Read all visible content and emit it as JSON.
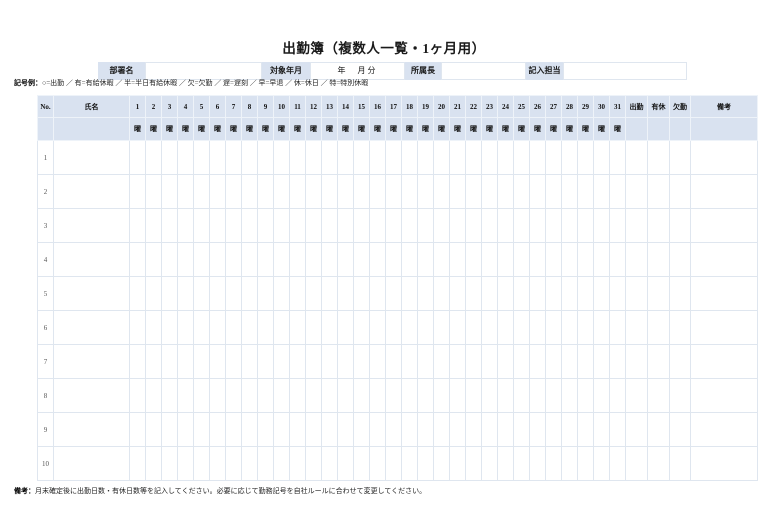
{
  "title": "出勤簿（複数人一覧・1ヶ月用）",
  "colors": {
    "header_bg": "#d9e2f0",
    "grid_line": "#dfe6ef",
    "text": "#1a1a1a"
  },
  "header": {
    "dept_label": "部署名",
    "dept_value": "",
    "target_label": "対象年月",
    "target_value": "年　月分",
    "manager_label": "所属長",
    "manager_value": "",
    "recorder_label": "記入担当",
    "recorder_value": ""
  },
  "legend": {
    "prefix": "記号例：",
    "text": "○=出勤 ／ 有=有給休暇 ／ 半=半日有給休暇 ／ 欠=欠勤 ／ 遅=遅刻 ／ 早=早退 ／ 休=休日 ／ 特=特別休暇"
  },
  "table": {
    "no_label": "No.",
    "name_label": "氏名",
    "weekday_label": "曜",
    "days": [
      1,
      2,
      3,
      4,
      5,
      6,
      7,
      8,
      9,
      10,
      11,
      12,
      13,
      14,
      15,
      16,
      17,
      18,
      19,
      20,
      21,
      22,
      23,
      24,
      25,
      26,
      27,
      28,
      29,
      30,
      31
    ],
    "summary_labels": [
      "出勤",
      "有休",
      "欠勤",
      "備考"
    ],
    "row_numbers": [
      1,
      2,
      3,
      4,
      5,
      6,
      7,
      8,
      9,
      10
    ],
    "cell_values": ""
  },
  "note": {
    "prefix": "備考：",
    "text": "月末確定後に出勤日数・有休日数等を記入してください。必要に応じて勤務記号を自社ルールに合わせて変更してください。"
  }
}
